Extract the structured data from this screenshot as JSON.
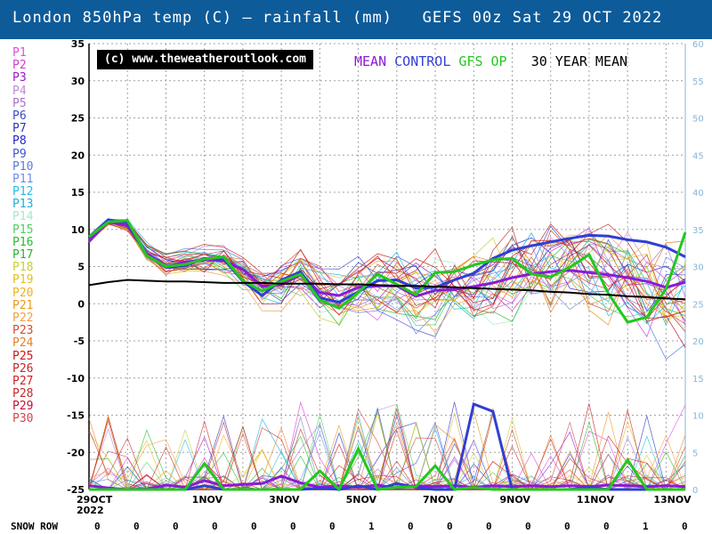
{
  "header": {
    "title": "London 850hPa temp (C) — rainfall (mm)   GEFS 00z Sat 29 OCT 2022"
  },
  "watermark": "(c) www.theweatheroutlook.com",
  "key": [
    {
      "label": "MEAN",
      "color": "#8a1bd6"
    },
    {
      "label": "CONTROL",
      "color": "#2f3fd4"
    },
    {
      "label": "GFS OP",
      "color": "#22c81e"
    },
    {
      "label": "30 YEAR MEAN",
      "color": "#000000"
    }
  ],
  "members": [
    {
      "label": "P1",
      "color": "#e04be0"
    },
    {
      "label": "P2",
      "color": "#d53ad0"
    },
    {
      "label": "P3",
      "color": "#9a18c8"
    },
    {
      "label": "P4",
      "color": "#c288dc"
    },
    {
      "label": "P5",
      "color": "#a974c8"
    },
    {
      "label": "P6",
      "color": "#3a4cc8"
    },
    {
      "label": "P7",
      "color": "#2a34b8"
    },
    {
      "label": "P8",
      "color": "#2228d0"
    },
    {
      "label": "P9",
      "color": "#3e55d8"
    },
    {
      "label": "P10",
      "color": "#5b7ae0"
    },
    {
      "label": "P11",
      "color": "#6d8ee8"
    },
    {
      "label": "P12",
      "color": "#21bde0"
    },
    {
      "label": "P13",
      "color": "#1ab0d8"
    },
    {
      "label": "P14",
      "color": "#a8e8c8"
    },
    {
      "label": "P15",
      "color": "#50d060"
    },
    {
      "label": "P16",
      "color": "#22c02a"
    },
    {
      "label": "P17",
      "color": "#28b530"
    },
    {
      "label": "P18",
      "color": "#c8d030"
    },
    {
      "label": "P19",
      "color": "#e0c020"
    },
    {
      "label": "P20",
      "color": "#f0b020"
    },
    {
      "label": "P21",
      "color": "#e89818"
    },
    {
      "label": "P22",
      "color": "#f2a040"
    },
    {
      "label": "P23",
      "color": "#d84830"
    },
    {
      "label": "P24",
      "color": "#e88020"
    },
    {
      "label": "P25",
      "color": "#c81818"
    },
    {
      "label": "P26",
      "color": "#c02828"
    },
    {
      "label": "P27",
      "color": "#d02020"
    },
    {
      "label": "P28",
      "color": "#c82828"
    },
    {
      "label": "P29",
      "color": "#c01030"
    },
    {
      "label": "P30",
      "color": "#d04848"
    }
  ],
  "snow_row": {
    "label": "SNOW ROW",
    "values": [
      0,
      0,
      0,
      0,
      0,
      0,
      0,
      1,
      0,
      0,
      0,
      0,
      0,
      0,
      1,
      0
    ]
  },
  "chart_data": {
    "type": "line",
    "x_labels": [
      "29OCT",
      "1NOV",
      "3NOV",
      "5NOV",
      "7NOV",
      "9NOV",
      "11NOV",
      "13NOV"
    ],
    "x_label_year": "2022",
    "x_range_days": [
      0,
      15.5
    ],
    "x_label_days": [
      0,
      3,
      5,
      7,
      9,
      11,
      13,
      15
    ],
    "left_axis": {
      "label": "850hPa temp (C)",
      "min": -25,
      "max": 35,
      "ticks": [
        35,
        30,
        25,
        20,
        15,
        10,
        5,
        0,
        -5,
        -10,
        -15,
        -20,
        -25
      ]
    },
    "right_axis": {
      "label": "rainfall (mm)",
      "min": 0,
      "max": 60,
      "ticks": [
        60,
        55,
        50,
        45,
        40,
        35,
        30,
        25,
        20,
        15,
        10,
        5,
        0
      ],
      "color": "#86b6d6"
    },
    "grid": true,
    "temp_series": [
      {
        "name": "MEAN",
        "color": "#8a1bd6",
        "x": [
          0,
          0.5,
          1,
          1.5,
          2,
          2.5,
          3,
          3.5,
          4,
          4.5,
          5,
          5.5,
          6,
          6.5,
          7,
          7.5,
          8,
          8.5,
          9,
          9.5,
          10,
          10.5,
          11,
          11.5,
          12,
          12.5,
          13,
          13.5,
          14,
          14.5,
          15,
          15.5
        ],
        "y": [
          8.5,
          11.0,
          10.5,
          6.8,
          5.0,
          5.6,
          5.9,
          5.8,
          4.6,
          2.3,
          2.6,
          4.0,
          1.5,
          1.1,
          2.2,
          2.4,
          2.4,
          1.0,
          1.8,
          1.9,
          2.3,
          2.8,
          3.5,
          4.0,
          4.3,
          4.5,
          4.2,
          3.9,
          3.5,
          3.0,
          2.2,
          2.9
        ]
      },
      {
        "name": "CONTROL",
        "color": "#2f3fd4",
        "x": [
          0,
          0.5,
          1,
          1.5,
          2,
          2.5,
          3,
          3.5,
          4,
          4.5,
          5,
          5.5,
          6,
          6.5,
          7,
          7.5,
          8,
          8.5,
          9,
          9.5,
          10,
          10.5,
          11,
          11.5,
          12,
          12.5,
          13,
          13.5,
          14,
          14.5,
          15,
          15.5
        ],
        "y": [
          9.0,
          11.3,
          10.9,
          6.5,
          4.9,
          5.1,
          6.1,
          6.0,
          3.0,
          1.1,
          3.2,
          4.3,
          0.8,
          0.2,
          1.6,
          3.1,
          3.2,
          2.1,
          2.2,
          3.2,
          4.1,
          6.1,
          7.2,
          7.8,
          8.3,
          8.8,
          9.2,
          9.1,
          8.6,
          8.3,
          7.6,
          6.3
        ]
      },
      {
        "name": "GFS OP",
        "color": "#22c81e",
        "x": [
          0,
          0.5,
          1,
          1.5,
          2,
          2.5,
          3,
          3.5,
          4,
          4.5,
          5,
          5.5,
          6,
          6.5,
          7,
          7.5,
          8,
          8.5,
          9,
          9.5,
          10,
          10.5,
          11,
          11.5,
          12,
          12.5,
          13,
          13.5,
          14,
          14.5,
          15,
          15.5
        ],
        "y": [
          9.0,
          11.0,
          11.2,
          6.5,
          5.0,
          5.3,
          6.0,
          6.3,
          3.1,
          1.7,
          3.0,
          4.0,
          0.5,
          -0.6,
          1.5,
          4.0,
          2.6,
          1.2,
          4.2,
          4.3,
          5.2,
          5.9,
          6.1,
          4.0,
          3.6,
          4.9,
          6.6,
          1.4,
          -2.5,
          -1.8,
          2.0,
          9.6
        ]
      },
      {
        "name": "30 YEAR MEAN",
        "color": "#000000",
        "x": [
          0,
          0.5,
          1,
          1.5,
          2,
          2.5,
          3,
          3.5,
          4,
          4.5,
          5,
          5.5,
          6,
          6.5,
          7,
          7.5,
          8,
          8.5,
          9,
          9.5,
          10,
          10.5,
          11,
          11.5,
          12,
          12.5,
          13,
          13.5,
          14,
          14.5,
          15,
          15.5
        ],
        "y": [
          2.5,
          2.9,
          3.2,
          3.1,
          3.0,
          3.0,
          2.9,
          2.8,
          2.8,
          2.8,
          2.7,
          2.7,
          2.7,
          2.6,
          2.6,
          2.5,
          2.4,
          2.4,
          2.3,
          2.2,
          2.1,
          2.0,
          1.9,
          1.8,
          1.6,
          1.5,
          1.3,
          1.2,
          1.0,
          0.9,
          0.7,
          0.6
        ]
      }
    ],
    "rain_series": [
      {
        "name": "MEAN",
        "color": "#8a1bd6",
        "x": [
          0,
          0.5,
          1,
          1.5,
          2,
          2.5,
          3,
          3.5,
          4,
          4.5,
          5,
          5.5,
          6,
          6.5,
          7,
          7.5,
          8,
          8.5,
          9,
          9.5,
          10,
          10.5,
          11,
          11.5,
          12,
          12.5,
          13,
          13.5,
          14,
          14.5,
          15,
          15.5
        ],
        "y": [
          0.5,
          0.2,
          0,
          0.1,
          0.6,
          0.3,
          1.2,
          0.5,
          0.7,
          0.8,
          1.8,
          0.9,
          0.3,
          0.5,
          0.3,
          0.6,
          0.2,
          0.5,
          0.4,
          0.5,
          0.3,
          0.5,
          0.4,
          0.5,
          0.4,
          0.5,
          0.4,
          0.6,
          0.5,
          0.4,
          0.5,
          0.4
        ]
      },
      {
        "name": "CONTROL",
        "color": "#2f3fd4",
        "x": [
          0,
          0.5,
          1,
          1.5,
          2,
          2.5,
          3,
          3.5,
          4,
          4.5,
          5,
          5.5,
          6,
          6.5,
          7,
          7.5,
          8,
          8.5,
          9,
          9.5,
          10,
          10.5,
          11,
          11.5,
          12,
          12.5,
          13,
          13.5,
          14,
          14.5,
          15,
          15.5
        ],
        "y": [
          0,
          0,
          0,
          0,
          0,
          0,
          0.5,
          0,
          0,
          0,
          0,
          0,
          0.2,
          0,
          0.5,
          0,
          0.8,
          0.3,
          0,
          0,
          11.5,
          10.5,
          0,
          0,
          0,
          0,
          0.3,
          0,
          0,
          0,
          0,
          0
        ]
      },
      {
        "name": "GFS OP",
        "color": "#22c81e",
        "x": [
          0,
          0.5,
          1,
          1.5,
          2,
          2.5,
          3,
          3.5,
          4,
          4.5,
          5,
          5.5,
          6,
          6.5,
          7,
          7.5,
          8,
          8.5,
          9,
          9.5,
          10,
          10.5,
          11,
          11.5,
          12,
          12.5,
          13,
          13.5,
          14,
          14.5,
          15,
          15.5
        ],
        "y": [
          0,
          0,
          0,
          0,
          0,
          0,
          3.5,
          0,
          0,
          0,
          0,
          0,
          2.5,
          0,
          5.5,
          0,
          0.3,
          0.4,
          3.2,
          0,
          0.3,
          0,
          0,
          0,
          0,
          0,
          0,
          0,
          4.0,
          0,
          0,
          0
        ]
      }
    ]
  }
}
